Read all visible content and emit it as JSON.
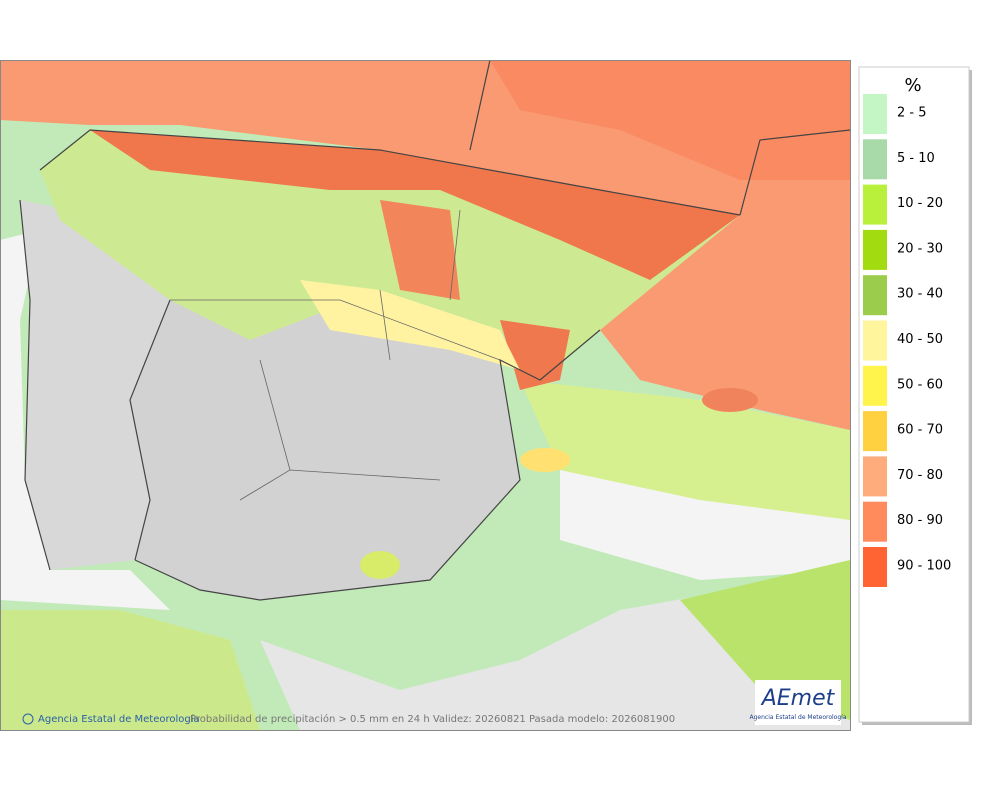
{
  "map": {
    "footer_credit": "Agencia Estatal de Meteorología",
    "footer_caption": "Probabilidad de precipitación > 0.5 mm en 24 h Validez: 20260821 Pasada modelo: 2026081900",
    "logo": {
      "name": "AEmet",
      "subtitle": "Agencia Estatal de Meteorología"
    }
  },
  "legend": {
    "title": "%",
    "items": [
      {
        "label": "2 - 5",
        "color": "#c4f5c4"
      },
      {
        "label": "5 - 10",
        "color": "#a8d9a8"
      },
      {
        "label": "10 - 20",
        "color": "#b8f03c"
      },
      {
        "label": "20 - 30",
        "color": "#a2dc10"
      },
      {
        "label": "30 - 40",
        "color": "#9ccc4c"
      },
      {
        "label": "40 - 50",
        "color": "#fff59c"
      },
      {
        "label": "50 - 60",
        "color": "#fff44c"
      },
      {
        "label": "60 - 70",
        "color": "#ffd040"
      },
      {
        "label": "70 - 80",
        "color": "#ffac7c"
      },
      {
        "label": "80 - 90",
        "color": "#ff8a5c"
      },
      {
        "label": "90 - 100",
        "color": "#ff6432"
      }
    ]
  }
}
